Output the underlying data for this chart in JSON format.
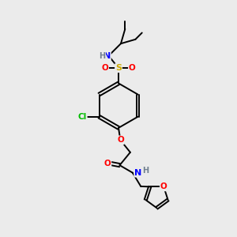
{
  "bg_color": "#ebebeb",
  "atom_colors": {
    "C": "#000000",
    "H": "#708090",
    "N": "#0000ff",
    "O": "#ff0000",
    "S": "#ccaa00",
    "Cl": "#00bb00"
  },
  "bond_lw": 1.4,
  "fontsize": 7.5
}
